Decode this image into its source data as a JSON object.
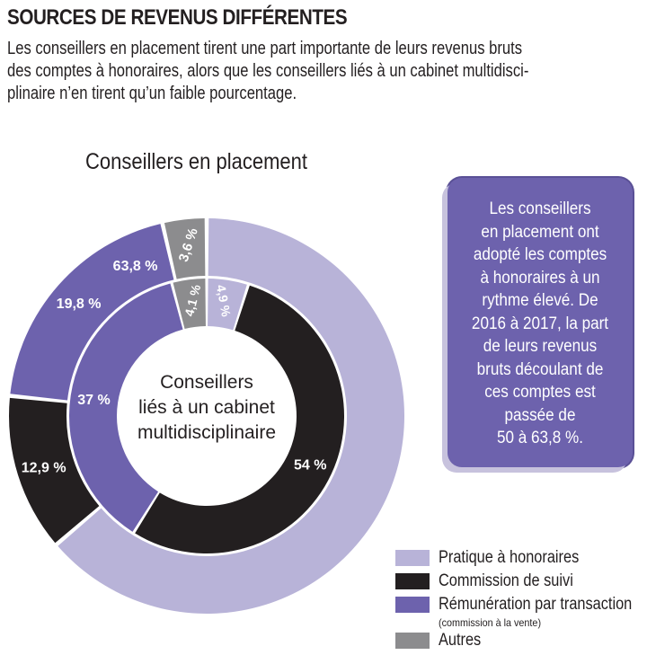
{
  "header": {
    "title": "SOURCES DE REVENUS DIFFÉRENTES",
    "subtitle_lines": [
      "Les conseillers en placement tirent une part importante de leurs revenus bruts",
      "des comptes à honoraires, alors que les conseillers liés à un cabinet multidisci-",
      "plinaire n’en tirent qu’un faible pourcentage."
    ]
  },
  "colors": {
    "honoraires": "#b8b3d8",
    "suivi": "#231f20",
    "transaction": "#6d62ad",
    "autres": "#8c8c8e"
  },
  "chart_data": {
    "type": "pie",
    "outer_ring": {
      "title": "Conseillers en placement",
      "slices": [
        {
          "category": "Pratique à honoraires",
          "value": 63.8,
          "label": "63,8 %"
        },
        {
          "category": "Commission de suivi",
          "value": 12.9,
          "label": "12,9 %"
        },
        {
          "category": "Rémunération par transaction",
          "value": 19.8,
          "label": "19,8 %"
        },
        {
          "category": "Autres",
          "value": 3.6,
          "label": "3,6 %"
        }
      ]
    },
    "inner_ring": {
      "title_lines": [
        "Conseillers",
        "liés à un cabinet",
        "multidisciplinaire"
      ],
      "slices": [
        {
          "category": "Pratique à honoraires",
          "value": 4.9,
          "label": "4,9 %"
        },
        {
          "category": "Commission de suivi",
          "value": 54,
          "label": "54 %"
        },
        {
          "category": "Rémunération par transaction",
          "value": 37,
          "label": "37 %"
        },
        {
          "category": "Autres",
          "value": 4.1,
          "label": "4,1 %"
        }
      ]
    },
    "legend": [
      {
        "key": "honoraires",
        "label": "Pratique à honoraires"
      },
      {
        "key": "suivi",
        "label": "Commission de suivi"
      },
      {
        "key": "transaction",
        "label": "Rémunération par transaction",
        "sublabel": "(commission à la vente)"
      },
      {
        "key": "autres",
        "label": "Autres"
      }
    ],
    "legend_position": "bottom-right"
  },
  "callout": {
    "text": "Les conseillers\nen placement ont\nadopté les comptes\nà honoraires à un\nrythme élevé. De\n2016 à 2017, la part\nde leurs revenus\nbruts découlant de\nces comptes est\npassée de\n50 à 63,8 %."
  }
}
